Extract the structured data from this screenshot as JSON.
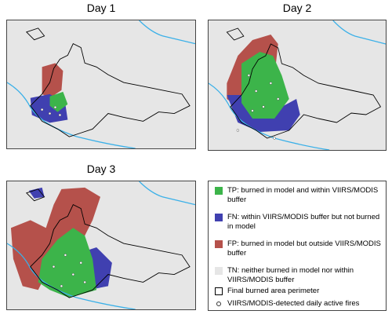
{
  "panels": [
    {
      "title": "Day 1"
    },
    {
      "title": "Day 2"
    },
    {
      "title": "Day 3"
    }
  ],
  "legend": {
    "items": [
      {
        "label": "TP: burned in model and within VIIRS/MODIS buffer"
      },
      {
        "label": "FN: within VIIRS/MODIS buffer but not burned in model"
      },
      {
        "label": "FP: burned in model but outside VIIRS/MODIS buffer"
      },
      {
        "label": "TN: neither burned in model nor within VIIRS/MODIS buffer"
      },
      {
        "label": "Final burned area perimeter"
      },
      {
        "label": "VIIRS/MODIS-detected daily active fires"
      }
    ]
  }
}
